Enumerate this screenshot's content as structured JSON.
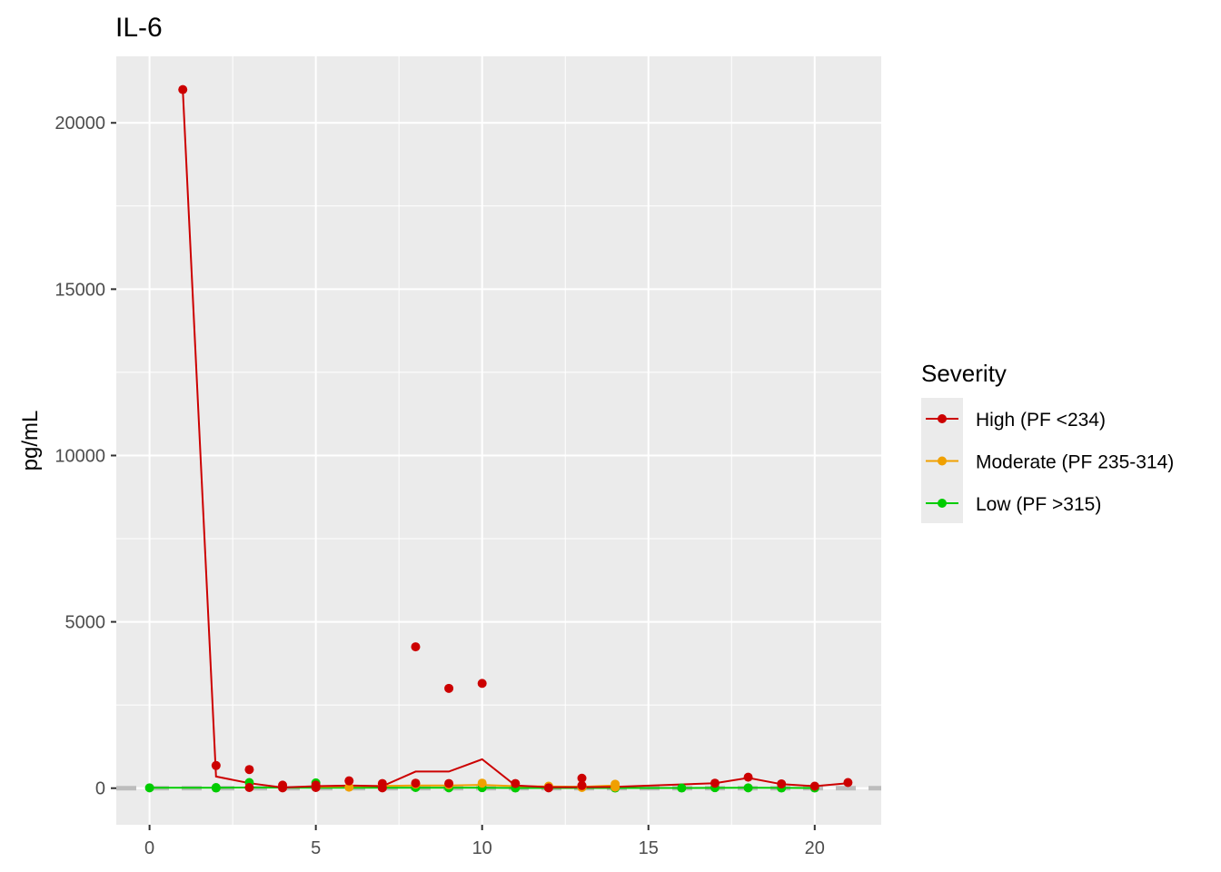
{
  "chart_data": {
    "type": "line",
    "title": "IL-6",
    "xlabel": "",
    "ylabel": "pg/mL",
    "xlim": [
      -1,
      22
    ],
    "ylim": [
      -1100,
      22000
    ],
    "x_ticks": [
      0,
      5,
      10,
      15,
      20
    ],
    "y_ticks": [
      0,
      5000,
      10000,
      15000,
      20000
    ],
    "grid": true,
    "reference_line": {
      "y": 0,
      "style": "dashed",
      "color": "#bdbdbd"
    },
    "legend": {
      "title": "Severity",
      "position": "right",
      "entries": [
        "High (PF <234)",
        "Moderate (PF 235-314)",
        "Low (PF >315)"
      ]
    },
    "series": [
      {
        "name": "High (PF <234)",
        "color": "#cc0000",
        "line": [
          [
            1,
            21000
          ],
          [
            2,
            350
          ],
          [
            3,
            150
          ],
          [
            4,
            20
          ],
          [
            5,
            60
          ],
          [
            6,
            80
          ],
          [
            7,
            60
          ],
          [
            8,
            500
          ],
          [
            9,
            500
          ],
          [
            10,
            870
          ],
          [
            11,
            80
          ],
          [
            12,
            30
          ],
          [
            13,
            30
          ],
          [
            14,
            40
          ],
          [
            17,
            150
          ],
          [
            18,
            310
          ],
          [
            19,
            120
          ],
          [
            20,
            60
          ],
          [
            21,
            150
          ]
        ],
        "points": [
          [
            1,
            21000
          ],
          [
            2,
            680
          ],
          [
            3,
            560
          ],
          [
            3,
            20
          ],
          [
            4,
            90
          ],
          [
            4,
            10
          ],
          [
            5,
            90
          ],
          [
            5,
            20
          ],
          [
            6,
            220
          ],
          [
            7,
            140
          ],
          [
            7,
            10
          ],
          [
            8,
            4250
          ],
          [
            8,
            150
          ],
          [
            9,
            3000
          ],
          [
            9,
            140
          ],
          [
            10,
            3150
          ],
          [
            11,
            140
          ],
          [
            12,
            10
          ],
          [
            13,
            300
          ],
          [
            13,
            80
          ],
          [
            17,
            150
          ],
          [
            18,
            330
          ],
          [
            19,
            130
          ],
          [
            20,
            60
          ],
          [
            21,
            170
          ]
        ]
      },
      {
        "name": "Moderate (PF 235-314)",
        "color": "#f0a000",
        "line": [
          [
            5,
            40
          ],
          [
            6,
            60
          ],
          [
            7,
            70
          ],
          [
            8,
            80
          ],
          [
            9,
            80
          ],
          [
            10,
            100
          ],
          [
            11,
            60
          ],
          [
            12,
            50
          ],
          [
            13,
            40
          ],
          [
            14,
            80
          ]
        ],
        "points": [
          [
            6,
            30
          ],
          [
            7,
            80
          ],
          [
            8,
            120
          ],
          [
            9,
            100
          ],
          [
            10,
            150
          ],
          [
            12,
            60
          ],
          [
            13,
            20
          ],
          [
            14,
            120
          ],
          [
            14,
            30
          ]
        ]
      },
      {
        "name": "Low (PF >315)",
        "color": "#00cc00",
        "line": [
          [
            0,
            10
          ],
          [
            2,
            10
          ],
          [
            3,
            20
          ],
          [
            5,
            15
          ],
          [
            8,
            10
          ],
          [
            10,
            10
          ],
          [
            11,
            5
          ],
          [
            14,
            5
          ],
          [
            16,
            5
          ],
          [
            18,
            10
          ],
          [
            20,
            5
          ]
        ],
        "points": [
          [
            0,
            10
          ],
          [
            2,
            20
          ],
          [
            2,
            5
          ],
          [
            3,
            170
          ],
          [
            5,
            160
          ],
          [
            5,
            40
          ],
          [
            8,
            20
          ],
          [
            9,
            10
          ],
          [
            10,
            15
          ],
          [
            11,
            5
          ],
          [
            14,
            5
          ],
          [
            16,
            5
          ],
          [
            17,
            15
          ],
          [
            18,
            10
          ],
          [
            19,
            5
          ],
          [
            20,
            5
          ]
        ]
      }
    ]
  }
}
